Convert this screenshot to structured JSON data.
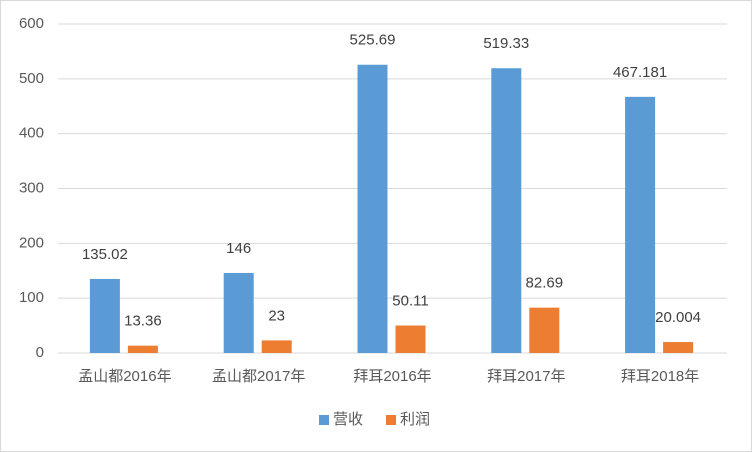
{
  "chart_data": {
    "type": "bar",
    "categories": [
      "孟山都2016年",
      "孟山都2017年",
      "拜耳2016年",
      "拜耳2017年",
      "拜耳2018年"
    ],
    "series": [
      {
        "name": "营收",
        "color": "#5b9bd5",
        "values": [
          135.02,
          146,
          525.69,
          519.33,
          467.181
        ]
      },
      {
        "name": "利润",
        "color": "#ed7d31",
        "values": [
          13.36,
          23,
          50.11,
          82.69,
          20.004
        ]
      }
    ],
    "ylim": [
      0,
      600
    ],
    "yticks": [
      0,
      100,
      200,
      300,
      400,
      500,
      600
    ],
    "grid": true,
    "legend": "bottom"
  }
}
